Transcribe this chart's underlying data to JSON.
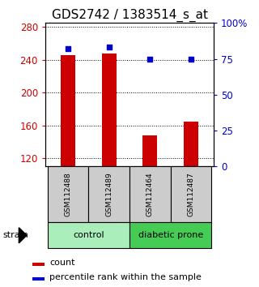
{
  "title": "GDS2742 / 1383514_s_at",
  "samples": [
    "GSM112488",
    "GSM112489",
    "GSM112464",
    "GSM112487"
  ],
  "bar_values": [
    246,
    248,
    148,
    165
  ],
  "percentile_values": [
    82,
    83,
    75,
    75
  ],
  "ylim_left": [
    110,
    285
  ],
  "ylim_right": [
    0,
    100
  ],
  "yticks_left": [
    120,
    160,
    200,
    240,
    280
  ],
  "yticks_right": [
    0,
    25,
    50,
    75,
    100
  ],
  "right_tick_labels": [
    "0",
    "25",
    "50",
    "75",
    "100%"
  ],
  "bar_color": "#cc0000",
  "dot_color": "#0000cc",
  "control_color": "#aaeebb",
  "diabetic_color": "#44cc55",
  "sample_box_color": "#cccccc",
  "bar_width": 0.35,
  "title_fontsize": 11,
  "tick_fontsize": 8.5,
  "sample_fontsize": 6.5,
  "group_fontsize": 8,
  "legend_fontsize": 8
}
